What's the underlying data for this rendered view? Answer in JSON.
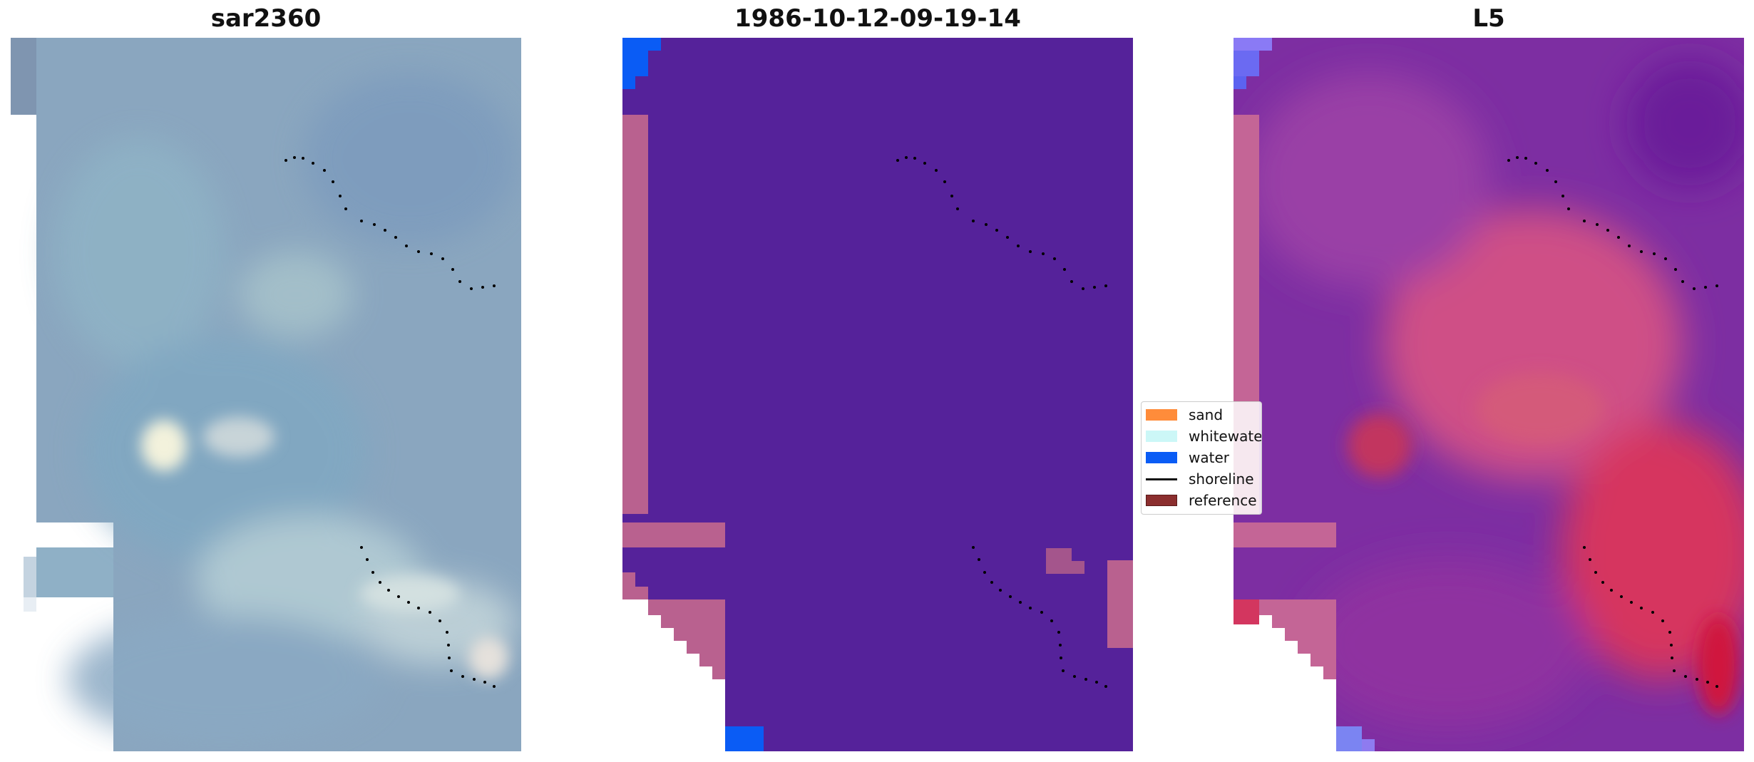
{
  "panels": [
    {
      "title": "sar2360"
    },
    {
      "title": "1986-10-12-09-19-14"
    },
    {
      "title": "L5"
    }
  ],
  "legend": {
    "items": [
      {
        "label": "sand",
        "color": "#ff8c3a",
        "kind": "patch",
        "icon": "sand-swatch-icon"
      },
      {
        "label": "whitewater",
        "color": "#ccf7f7",
        "kind": "patch",
        "icon": "whitewater-swatch-icon"
      },
      {
        "label": "water",
        "color": "#0a5cf5",
        "kind": "patch",
        "icon": "water-swatch-icon"
      },
      {
        "label": "shoreline",
        "color": "#000000",
        "kind": "line",
        "icon": "shoreline-line-icon"
      },
      {
        "label": "reference",
        "color": "#8b2e2e",
        "kind": "patch",
        "icon": "reference-swatch-icon"
      }
    ]
  },
  "colors": {
    "classification_background": "#55229a",
    "shoreline_points": "#000000",
    "pink_overlay": "#b9618f"
  }
}
